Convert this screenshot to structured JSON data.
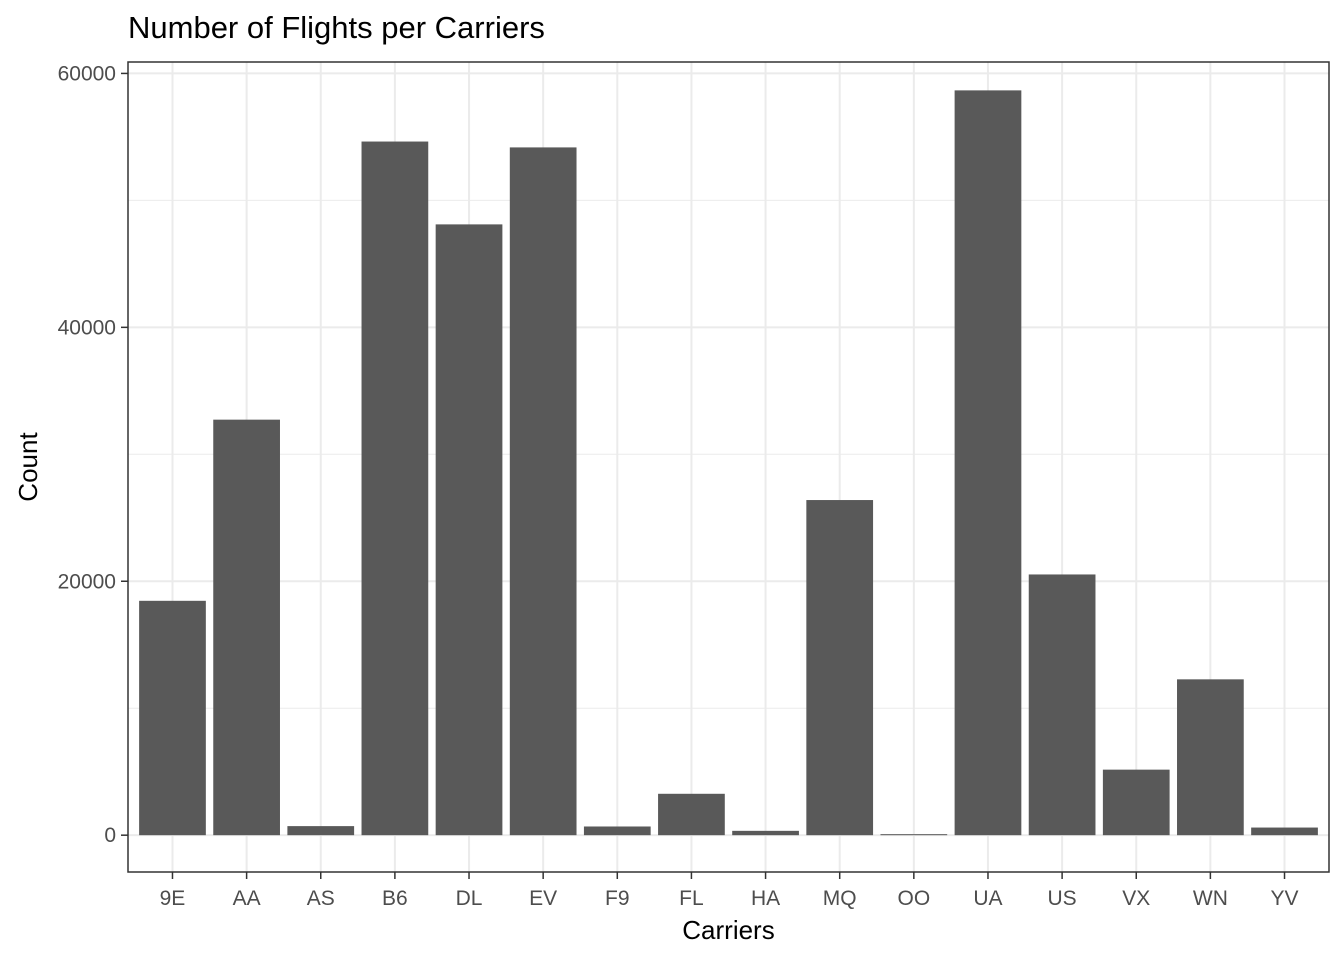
{
  "chart_data": {
    "type": "bar",
    "title": "Number of Flights per Carriers",
    "xlabel": "Carriers",
    "ylabel": "Count",
    "categories": [
      "9E",
      "AA",
      "AS",
      "B6",
      "DL",
      "EV",
      "F9",
      "FL",
      "HA",
      "MQ",
      "OO",
      "UA",
      "US",
      "VX",
      "WN",
      "YV"
    ],
    "values": [
      18460,
      32729,
      714,
      54635,
      48110,
      54173,
      685,
      3260,
      342,
      26397,
      32,
      58665,
      20536,
      5162,
      12275,
      601
    ],
    "ylim": [
      -2900,
      60900
    ],
    "yticks": [
      0,
      20000,
      40000,
      60000
    ],
    "ytick_labels": [
      "0",
      "20000",
      "40000",
      "60000"
    ],
    "grid": true,
    "bar_color": "#595959",
    "grid_color": "#ebebeb",
    "panel_border_color": "#333333"
  }
}
